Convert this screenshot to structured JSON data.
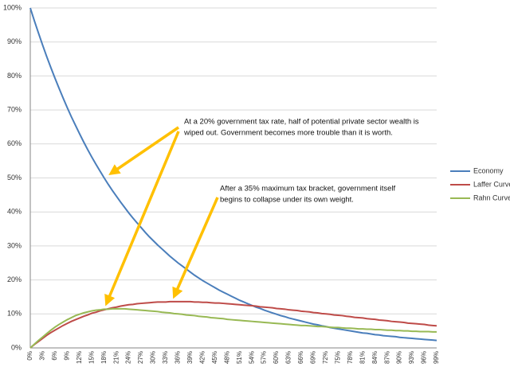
{
  "chart_data": {
    "type": "line",
    "categories": [
      "0%",
      null,
      null,
      "3%",
      null,
      null,
      "6%",
      null,
      null,
      "9%",
      null,
      null,
      "12%",
      null,
      null,
      "15%",
      null,
      null,
      "18%",
      null,
      null,
      "21%",
      null,
      null,
      "24%",
      null,
      null,
      "27%",
      null,
      null,
      "30%",
      null,
      null,
      "33%",
      null,
      null,
      "36%",
      null,
      null,
      "39%",
      null,
      null,
      "42%",
      null,
      null,
      "45%",
      null,
      null,
      "48%",
      null,
      null,
      "51%",
      null,
      null,
      "54%",
      null,
      null,
      "57%",
      null,
      null,
      "60%",
      null,
      null,
      "63%",
      null,
      null,
      "66%",
      null,
      null,
      "69%",
      null,
      null,
      "72%",
      null,
      null,
      "75%",
      null,
      null,
      "78%",
      null,
      null,
      "81%",
      null,
      null,
      "84%",
      null,
      null,
      "87%",
      null,
      null,
      "90%",
      null,
      null,
      "93%",
      null,
      null,
      "96%",
      null,
      null,
      "99%"
    ],
    "series": [
      {
        "name": "Economy",
        "color": "#4a7ebb",
        "values": [
          100,
          96.2,
          92.6,
          89.1,
          85.7,
          82.5,
          79.4,
          76.4,
          73.5,
          70.7,
          68.0,
          65.5,
          63.0,
          60.6,
          58.3,
          56.1,
          54.0,
          52.0,
          50.0,
          48.1,
          46.3,
          44.6,
          42.9,
          41.3,
          39.7,
          38.2,
          36.8,
          35.4,
          34.0,
          32.7,
          31.5,
          30.3,
          29.2,
          28.1,
          27.0,
          26.0,
          25.0,
          24.1,
          23.2,
          22.3,
          21.4,
          20.6,
          19.8,
          19.1,
          18.4,
          17.7,
          17.0,
          16.4,
          15.8,
          15.2,
          14.6,
          14.0,
          13.5,
          13.0,
          12.5,
          12.0,
          11.6,
          11.1,
          10.7,
          10.3,
          9.9,
          9.5,
          9.2,
          8.8,
          8.5,
          8.2,
          7.9,
          7.6,
          7.3,
          7.0,
          6.8,
          6.5,
          6.3,
          6.0,
          5.8,
          5.6,
          5.4,
          5.2,
          5.0,
          4.8,
          4.6,
          4.4,
          4.3,
          4.1,
          3.9,
          3.8,
          3.6,
          3.5,
          3.4,
          3.3,
          3.1,
          3.0,
          2.9,
          2.8,
          2.7,
          2.6,
          2.5,
          2.4,
          2.3,
          2.2
        ]
      },
      {
        "name": "Laffer Curve",
        "color": "#be4b48",
        "values": [
          0,
          1.0,
          1.9,
          2.8,
          3.7,
          4.5,
          5.2,
          5.9,
          6.6,
          7.2,
          7.8,
          8.3,
          8.8,
          9.3,
          9.7,
          10.2,
          10.5,
          10.9,
          11.2,
          11.5,
          11.8,
          12.0,
          12.3,
          12.5,
          12.7,
          12.8,
          13.0,
          13.1,
          13.2,
          13.3,
          13.4,
          13.5,
          13.5,
          13.5,
          13.6,
          13.6,
          13.6,
          13.6,
          13.6,
          13.6,
          13.5,
          13.5,
          13.4,
          13.4,
          13.3,
          13.2,
          13.2,
          13.1,
          13.0,
          12.9,
          12.8,
          12.7,
          12.6,
          12.5,
          12.4,
          12.3,
          12.1,
          12.0,
          11.9,
          11.8,
          11.6,
          11.5,
          11.4,
          11.2,
          11.1,
          11.0,
          10.8,
          10.7,
          10.6,
          10.4,
          10.3,
          10.1,
          10.0,
          9.9,
          9.7,
          9.6,
          9.5,
          9.3,
          9.2,
          9.0,
          8.9,
          8.8,
          8.6,
          8.5,
          8.4,
          8.2,
          8.1,
          8.0,
          7.8,
          7.7,
          7.6,
          7.5,
          7.3,
          7.2,
          7.1,
          7.0,
          6.9,
          6.7,
          6.6,
          6.5
        ]
      },
      {
        "name": "Rahn Curve",
        "color": "#98b954",
        "values": [
          0,
          1.1,
          2.2,
          3.2,
          4.2,
          5.2,
          6.1,
          6.9,
          7.6,
          8.3,
          8.9,
          9.5,
          9.9,
          10.3,
          10.6,
          10.9,
          11.1,
          11.2,
          11.4,
          11.4,
          11.5,
          11.5,
          11.5,
          11.5,
          11.4,
          11.3,
          11.2,
          11.1,
          11.0,
          10.9,
          10.8,
          10.7,
          10.5,
          10.4,
          10.3,
          10.1,
          10.0,
          9.9,
          9.7,
          9.6,
          9.5,
          9.3,
          9.2,
          9.1,
          8.9,
          8.8,
          8.7,
          8.6,
          8.4,
          8.3,
          8.2,
          8.1,
          8.0,
          7.9,
          7.8,
          7.7,
          7.6,
          7.5,
          7.4,
          7.3,
          7.2,
          7.1,
          7.0,
          6.9,
          6.8,
          6.7,
          6.6,
          6.6,
          6.5,
          6.4,
          6.3,
          6.3,
          6.2,
          6.1,
          6.0,
          6.0,
          5.9,
          5.8,
          5.8,
          5.7,
          5.6,
          5.6,
          5.5,
          5.5,
          5.4,
          5.4,
          5.3,
          5.2,
          5.2,
          5.1,
          5.1,
          5.0,
          5.0,
          4.9,
          4.9,
          4.8,
          4.8,
          4.8,
          4.7,
          4.7
        ]
      }
    ],
    "ylim": [
      0,
      100
    ],
    "yticks": [
      {
        "value": 0,
        "label": "0%"
      },
      {
        "value": 10,
        "label": "10%"
      },
      {
        "value": 20,
        "label": "20%"
      },
      {
        "value": 30,
        "label": "30%"
      },
      {
        "value": 40,
        "label": "40%"
      },
      {
        "value": 50,
        "label": "50%"
      },
      {
        "value": 60,
        "label": "60%"
      },
      {
        "value": 70,
        "label": "70%"
      },
      {
        "value": 80,
        "label": "80%"
      },
      {
        "value": 90,
        "label": "90%"
      },
      {
        "value": 100,
        "label": "100%"
      }
    ],
    "grid": true,
    "legend": "right",
    "annotations": [
      {
        "lines": [
          "At a 20% government tax rate, half of potential private sector wealth is",
          "wiped out. Government becomes more trouble than it is worth."
        ]
      },
      {
        "lines": [
          "After a 35% maximum tax bracket, government itself",
          "begins to collapse under its own weight."
        ]
      }
    ]
  }
}
